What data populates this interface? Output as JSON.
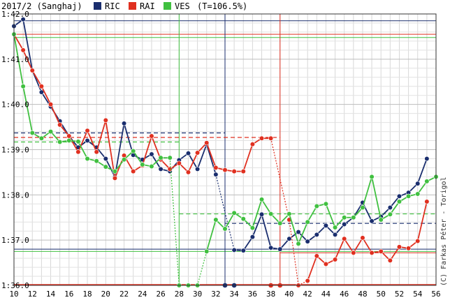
{
  "chart_data": {
    "type": "line",
    "title": "2017/2 (Sanghaj)",
    "legend_suffix": "(T=106.5%)",
    "credit": "(C) Farkas Péter - Torigol",
    "x_ticks": [
      "10",
      "12",
      "14",
      "16",
      "18",
      "20",
      "22",
      "24",
      "26",
      "28",
      "30",
      "32",
      "34",
      "36",
      "38",
      "40",
      "42",
      "44",
      "46",
      "48",
      "50",
      "52",
      "54",
      "56"
    ],
    "y_ticks": [
      "1:42.0",
      "1:41.0",
      "1:40.0",
      "1:39.0",
      "1:38.0",
      "1:37.0",
      "1:36.0"
    ],
    "xlim": [
      10,
      56
    ],
    "ylim_seconds": [
      96.0,
      102.0
    ],
    "series": [
      {
        "name": "RIC",
        "color": "#1a2e6e",
        "points": [
          [
            10,
            101.73
          ],
          [
            11,
            101.88
          ],
          [
            12,
            100.75
          ],
          [
            13,
            100.27
          ],
          [
            14,
            99.95
          ],
          [
            15,
            99.63
          ],
          [
            16,
            99.3
          ],
          [
            17,
            99.05
          ],
          [
            18,
            99.2
          ],
          [
            19,
            99.05
          ],
          [
            20,
            98.8
          ],
          [
            21,
            98.4
          ],
          [
            22,
            99.58
          ],
          [
            23,
            98.88
          ],
          [
            24,
            98.78
          ],
          [
            25,
            98.9
          ],
          [
            26,
            98.57
          ],
          [
            27,
            98.52
          ],
          [
            28,
            98.77
          ],
          [
            29,
            98.92
          ],
          [
            30,
            98.57
          ],
          [
            31,
            99.12
          ],
          [
            32,
            98.45
          ],
          [
            34,
            96.78
          ],
          [
            35,
            96.77
          ],
          [
            36,
            97.07
          ],
          [
            37,
            97.57
          ],
          [
            38,
            96.83
          ],
          [
            39,
            96.8
          ],
          [
            40,
            97.03
          ],
          [
            41,
            97.18
          ],
          [
            42,
            96.97
          ],
          [
            43,
            97.12
          ],
          [
            44,
            97.32
          ],
          [
            45,
            97.12
          ],
          [
            46,
            97.35
          ],
          [
            47,
            97.5
          ],
          [
            48,
            97.83
          ],
          [
            49,
            97.42
          ],
          [
            50,
            97.52
          ],
          [
            51,
            97.72
          ],
          [
            52,
            97.97
          ],
          [
            53,
            98.05
          ],
          [
            54,
            98.25
          ],
          [
            55,
            98.8
          ]
        ],
        "dnf_laps": [
          33,
          34
        ],
        "avg_line_1": 99.37,
        "avg_line_2": 97.37,
        "best_line": 96.8,
        "dnf_marker_lap": 33
      },
      {
        "name": "RAI",
        "color": "#e03020",
        "points": [
          [
            10,
            101.55
          ],
          [
            11,
            101.2
          ],
          [
            12,
            100.75
          ],
          [
            13,
            100.4
          ],
          [
            14,
            100.0
          ],
          [
            15,
            99.55
          ],
          [
            16,
            99.3
          ],
          [
            17,
            98.95
          ],
          [
            18,
            99.42
          ],
          [
            19,
            98.95
          ],
          [
            20,
            99.65
          ],
          [
            21,
            98.37
          ],
          [
            22,
            98.87
          ],
          [
            23,
            98.52
          ],
          [
            24,
            98.65
          ],
          [
            25,
            99.3
          ],
          [
            26,
            98.78
          ],
          [
            27,
            98.57
          ],
          [
            28,
            98.7
          ],
          [
            29,
            98.5
          ],
          [
            30,
            98.93
          ],
          [
            31,
            99.15
          ],
          [
            32,
            98.6
          ],
          [
            33,
            98.55
          ],
          [
            34,
            98.52
          ],
          [
            35,
            98.52
          ],
          [
            36,
            99.12
          ],
          [
            37,
            99.25
          ],
          [
            38,
            99.25
          ],
          [
            40,
            97.45
          ],
          [
            41,
            96.0
          ],
          [
            42,
            96.1
          ],
          [
            43,
            96.65
          ],
          [
            44,
            96.47
          ],
          [
            45,
            96.57
          ],
          [
            46,
            97.03
          ],
          [
            47,
            96.72
          ],
          [
            48,
            97.05
          ],
          [
            49,
            96.72
          ],
          [
            50,
            96.75
          ],
          [
            51,
            96.55
          ],
          [
            52,
            96.85
          ],
          [
            53,
            96.82
          ],
          [
            54,
            96.98
          ],
          [
            55,
            97.85
          ]
        ],
        "dnf_laps": [
          38,
          39
        ],
        "avg_line_1": 99.27,
        "best_line": 96.0,
        "dnf_marker_lap": 39
      },
      {
        "name": "VES",
        "color": "#40c040",
        "points": [
          [
            10,
            101.55
          ],
          [
            11,
            100.4
          ],
          [
            12,
            99.37
          ],
          [
            13,
            99.25
          ],
          [
            14,
            99.4
          ],
          [
            15,
            99.17
          ],
          [
            16,
            99.2
          ],
          [
            17,
            99.18
          ],
          [
            18,
            98.8
          ],
          [
            19,
            98.75
          ],
          [
            20,
            98.62
          ],
          [
            21,
            98.52
          ],
          [
            22,
            98.78
          ],
          [
            23,
            98.97
          ],
          [
            24,
            98.67
          ],
          [
            25,
            98.63
          ],
          [
            26,
            98.82
          ],
          [
            27,
            98.82
          ],
          [
            28,
            96.0
          ],
          [
            29,
            96.0
          ],
          [
            30,
            96.0
          ],
          [
            31,
            96.75
          ],
          [
            32,
            97.45
          ],
          [
            33,
            97.25
          ],
          [
            34,
            97.6
          ],
          [
            35,
            97.47
          ],
          [
            36,
            97.27
          ],
          [
            37,
            97.9
          ],
          [
            38,
            97.58
          ],
          [
            39,
            97.37
          ],
          [
            40,
            97.58
          ],
          [
            41,
            96.92
          ],
          [
            42,
            97.4
          ],
          [
            43,
            97.75
          ],
          [
            44,
            97.8
          ],
          [
            45,
            97.28
          ],
          [
            46,
            97.5
          ],
          [
            47,
            97.5
          ],
          [
            48,
            97.72
          ],
          [
            49,
            98.4
          ],
          [
            50,
            97.45
          ],
          [
            51,
            97.57
          ],
          [
            52,
            97.85
          ],
          [
            53,
            97.97
          ],
          [
            54,
            98.02
          ],
          [
            55,
            98.3
          ],
          [
            56,
            98.4
          ]
        ],
        "avg_line_1": 99.17,
        "avg_line_2": 97.58,
        "best_line": 96.75,
        "dnf_marker_lap": 28
      }
    ],
    "top_lines": [
      101.85,
      101.55,
      101.48
    ],
    "grid": true,
    "legend_placement": "top"
  }
}
